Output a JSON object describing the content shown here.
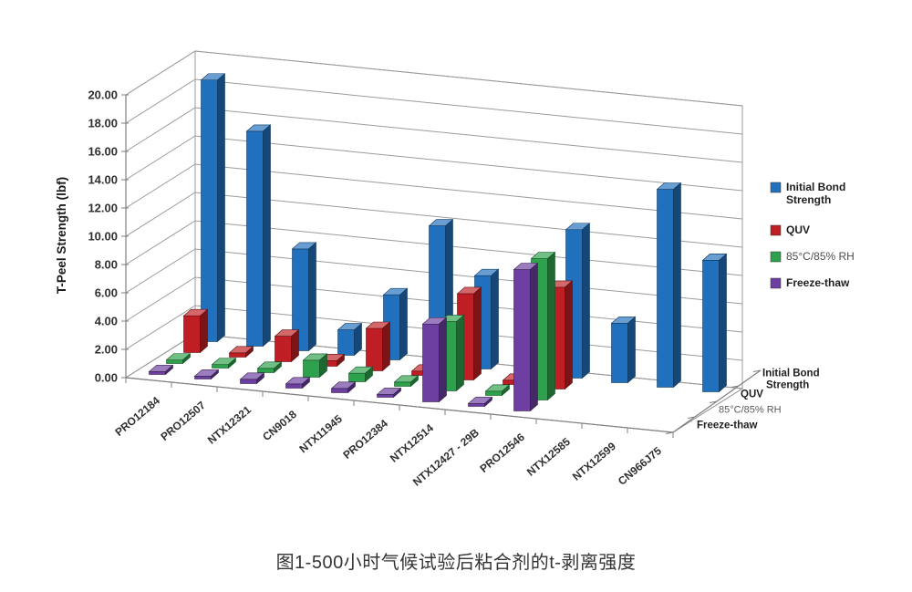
{
  "figure": {
    "caption": "图1-500小时气候试验后粘合剂的t-剥离强度"
  },
  "chart_data": {
    "type": "bar",
    "projection": "3d-column",
    "title": "",
    "ylabel": "T-Peel Strength (lbf)",
    "ylim": [
      0,
      20
    ],
    "ytick_step": 2,
    "ytick_decimals": 2,
    "grid": true,
    "legend_position": "right",
    "categories": [
      "PRO12184",
      "PRO12507",
      "NTX12321",
      "CN9018",
      "NTX11945",
      "PRO12384",
      "NTX12514",
      "NTX12427 - 29B",
      "PRO12546",
      "NTX12585",
      "NTX12599",
      "CN966J75"
    ],
    "series": [
      {
        "name": "Initial Bond Strength",
        "color": "#2170bd",
        "values": [
          18.5,
          15.2,
          7.2,
          1.8,
          4.6,
          9.8,
          6.6,
          7.3,
          10.5,
          4.2,
          14.0,
          9.3
        ]
      },
      {
        "name": "QUV",
        "color": "#bf1f24",
        "values": [
          2.6,
          0.3,
          1.8,
          0.4,
          3.0,
          0.3,
          6.1,
          0.3,
          7.2,
          0,
          0,
          0
        ]
      },
      {
        "name": "85°C/85% RH",
        "color": "#2da14c",
        "values": [
          0.25,
          0.25,
          0.3,
          1.2,
          0.6,
          0.3,
          4.9,
          0.3,
          10.0,
          0,
          0,
          0
        ]
      },
      {
        "name": "Freeze-thaw",
        "color": "#6c3fa0",
        "values": [
          0.2,
          0.2,
          0.3,
          0.3,
          0.3,
          0.2,
          5.5,
          0.2,
          10.0,
          0,
          0,
          0
        ]
      }
    ],
    "depth_axis_labels_top_to_bottom": [
      "Initial Bond Strength",
      "QUV",
      "85°C/85% RH",
      "Freeze-thaw"
    ]
  }
}
